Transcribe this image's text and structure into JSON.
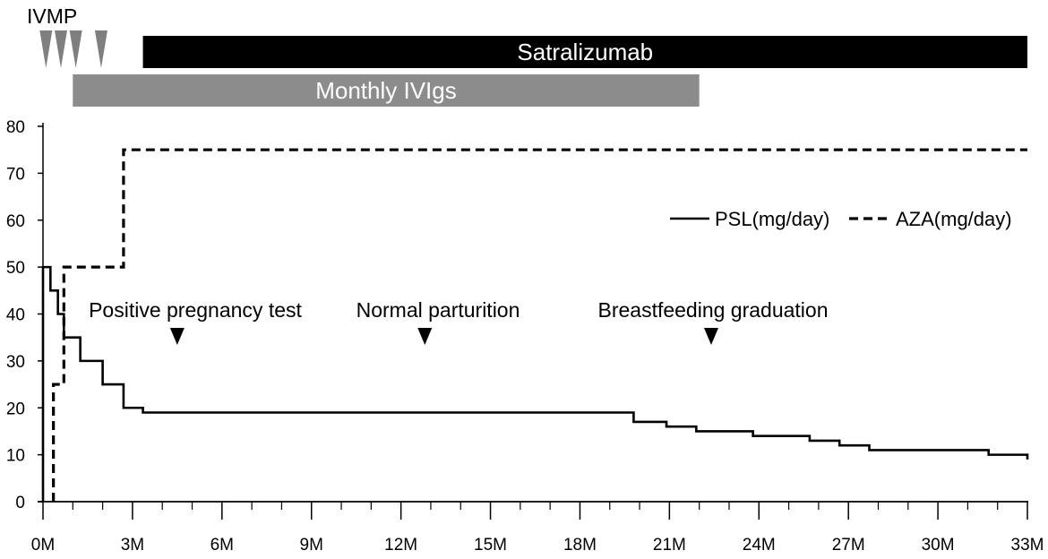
{
  "chart_data": {
    "type": "line",
    "x_unit": "months",
    "xlim": [
      0,
      33
    ],
    "ylim": [
      0,
      80
    ],
    "x_ticks": [
      0,
      3,
      6,
      9,
      12,
      15,
      18,
      21,
      24,
      27,
      30,
      33
    ],
    "x_tick_labels": [
      "0M",
      "3M",
      "6M",
      "9M",
      "12M",
      "15M",
      "18M",
      "21M",
      "24M",
      "27M",
      "30M",
      "33M"
    ],
    "y_ticks": [
      0,
      10,
      20,
      30,
      40,
      50,
      60,
      70,
      80
    ],
    "y_tick_labels": [
      "0",
      "10",
      "20",
      "30",
      "40",
      "50",
      "60",
      "70",
      "80"
    ],
    "series": [
      {
        "name": "PSL(mg/day)",
        "style": "solid",
        "step_x": [
          0,
          0.25,
          0.5,
          0.7,
          1.25,
          2.0,
          2.7,
          3.35,
          17.8,
          19.8,
          20.9,
          21.9,
          23.8,
          25.7,
          26.7,
          27.7,
          31.7,
          33.0
        ],
        "step_y": [
          50,
          45,
          40,
          35,
          30,
          25,
          20,
          19,
          19,
          17,
          16,
          15,
          14,
          13,
          12,
          11,
          10,
          9
        ]
      },
      {
        "name": "AZA(mg/day)",
        "style": "dashed",
        "step_x": [
          0.35,
          0.7,
          0.95,
          2.7,
          33.0
        ],
        "step_y": [
          25,
          50,
          50,
          75,
          75
        ]
      }
    ],
    "timeline_bars": [
      {
        "label": "Satralizumab",
        "start": 3.35,
        "end": 33.0,
        "color": "#000000"
      },
      {
        "label": "Monthly IVIgs",
        "start": 1.0,
        "end": 22.0,
        "color": "#8c8c8c"
      }
    ],
    "ivmp": {
      "label": "IVMP",
      "marker_months": [
        0.1,
        0.6,
        1.1,
        1.95
      ]
    },
    "events": [
      {
        "label": "Positive pregnancy test",
        "month": 4.5
      },
      {
        "label": "Normal parturition",
        "month": 12.8
      },
      {
        "label": "Breastfeeding graduation",
        "month": 22.4
      }
    ],
    "legend_position": "top-right"
  }
}
